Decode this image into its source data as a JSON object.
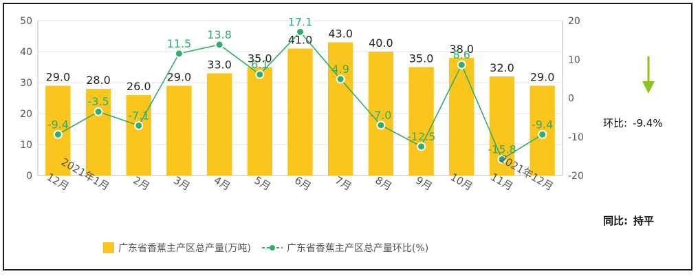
{
  "chart_data": {
    "type": "bar+line",
    "categories": [
      "12月",
      "2021年1月",
      "2月",
      "3月",
      "4月",
      "5月",
      "6月",
      "7月",
      "8月",
      "9月",
      "10月",
      "11月",
      "2021年12月"
    ],
    "series": [
      {
        "name": "广东省香蕉主产区总产量(万吨)",
        "type": "bar",
        "axis": "left",
        "values": [
          29.0,
          28.0,
          26.0,
          29.0,
          33.0,
          35.0,
          41.0,
          43.0,
          40.0,
          35.0,
          38.0,
          32.0,
          29.0
        ],
        "labels": [
          "29.0",
          "28.0",
          "26.0",
          "29.0",
          "33.0",
          "35.0",
          "41.0",
          "43.0",
          "40.0",
          "35.0",
          "38.0",
          "32.0",
          "29.0"
        ]
      },
      {
        "name": "广东省香蕉主产区总产量环比(%)",
        "type": "line",
        "axis": "right",
        "values": [
          -9.4,
          -3.5,
          -7.1,
          11.5,
          13.8,
          6.1,
          17.1,
          4.9,
          -7.0,
          -12.5,
          8.6,
          -15.8,
          -9.4
        ],
        "labels": [
          "-9.4",
          "-3.5",
          "-7.1",
          "11.5",
          "13.8",
          "6.1",
          "17.1",
          "4.9",
          "-7.0",
          "-12.5",
          "8.6",
          "-15.8",
          "-9.4"
        ]
      }
    ],
    "y_left": {
      "min": 0,
      "max": 50,
      "ticks": [
        "0",
        "10",
        "20",
        "30",
        "40",
        "50"
      ]
    },
    "y_right": {
      "min": -20,
      "max": 20,
      "ticks": [
        "-20",
        "-10",
        "0",
        "10",
        "20"
      ]
    },
    "grid": true,
    "legend_position": "bottom",
    "colors": {
      "bar": "#FAC51C",
      "line": "#2EAD6B",
      "grid": "#E3E3E3",
      "axis_text": "#555555",
      "arrow": "#8DC21F"
    }
  },
  "side_panel": {
    "mom_label": "环比:",
    "mom_value": "-9.4%",
    "yoy_label": "同比:",
    "yoy_value": "持平",
    "trend_icon": "down-arrow-icon"
  }
}
